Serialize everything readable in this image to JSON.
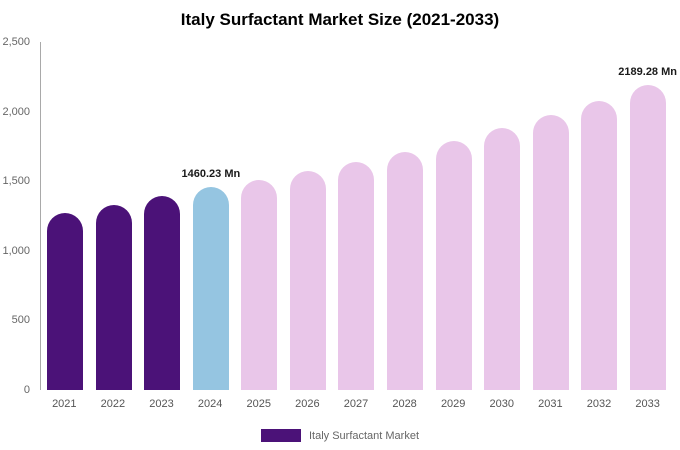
{
  "title": "Italy Surfactant Market Size (2021-2033)",
  "legend": {
    "label": "Italy Surfactant Market",
    "swatch_color": "#4b1278"
  },
  "chart_data": {
    "type": "bar",
    "title": "Italy Surfactant Market Size (2021-2033)",
    "categories": [
      "2021",
      "2022",
      "2023",
      "2024",
      "2025",
      "2026",
      "2027",
      "2028",
      "2029",
      "2030",
      "2031",
      "2032",
      "2033"
    ],
    "values": [
      1270,
      1330,
      1395,
      1460.23,
      1510,
      1575,
      1640,
      1712,
      1790,
      1882,
      1975,
      2075,
      2189.28
    ],
    "unit": "Mn",
    "ylim": [
      0,
      2500
    ],
    "yticks": [
      0,
      500,
      1000,
      1500,
      2000,
      2500
    ],
    "ytick_labels": [
      "0",
      "500",
      "1,000",
      "1,500",
      "2,000",
      "2,500"
    ],
    "bar_colors": [
      "#4b1278",
      "#4b1278",
      "#4b1278",
      "#95c5e1",
      "#e9c6e9",
      "#e9c6e9",
      "#e9c6e9",
      "#e9c6e9",
      "#e9c6e9",
      "#e9c6e9",
      "#e9c6e9",
      "#e9c6e9",
      "#e9c6e9"
    ],
    "colors": {
      "historical": "#4b1278",
      "current": "#95c5e1",
      "forecast": "#e9c6e9"
    },
    "annotations": [
      {
        "category": "2024",
        "text": "1460.23 Mn"
      },
      {
        "category": "2033",
        "text": "2189.28 Mn"
      }
    ],
    "legend_position": "bottom",
    "grid": false,
    "xlabel": "",
    "ylabel": ""
  }
}
